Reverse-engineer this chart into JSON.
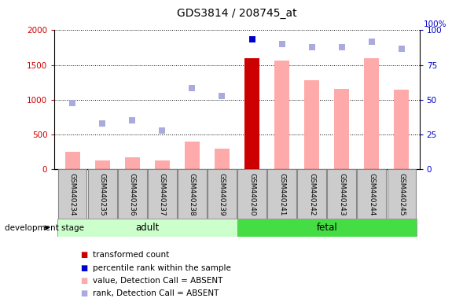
{
  "title": "GDS3814 / 208745_at",
  "samples": [
    "GSM440234",
    "GSM440235",
    "GSM440236",
    "GSM440237",
    "GSM440238",
    "GSM440239",
    "GSM440240",
    "GSM440241",
    "GSM440242",
    "GSM440243",
    "GSM440244",
    "GSM440245"
  ],
  "groups": [
    "adult",
    "adult",
    "adult",
    "adult",
    "adult",
    "adult",
    "fetal",
    "fetal",
    "fetal",
    "fetal",
    "fetal",
    "fetal"
  ],
  "bar_values": [
    250,
    130,
    170,
    120,
    400,
    300,
    1600,
    1560,
    1280,
    1150,
    1600,
    1140
  ],
  "bar_colors": [
    "#ffaaaa",
    "#ffaaaa",
    "#ffaaaa",
    "#ffaaaa",
    "#ffaaaa",
    "#ffaaaa",
    "#cc0000",
    "#ffaaaa",
    "#ffaaaa",
    "#ffaaaa",
    "#ffaaaa",
    "#ffaaaa"
  ],
  "rank_values": [
    950,
    660,
    700,
    560,
    1170,
    1050,
    1870,
    1800,
    1760,
    1750,
    1840,
    1730
  ],
  "rank_colors": [
    "#aaaadd",
    "#aaaadd",
    "#aaaadd",
    "#aaaadd",
    "#aaaadd",
    "#aaaadd",
    "#0000cc",
    "#aaaadd",
    "#aaaadd",
    "#aaaadd",
    "#aaaadd",
    "#aaaadd"
  ],
  "ylim_left": [
    0,
    2000
  ],
  "ylim_right": [
    0,
    100
  ],
  "yticks_left": [
    0,
    500,
    1000,
    1500,
    2000
  ],
  "yticks_right": [
    0,
    25,
    50,
    75,
    100
  ],
  "ylabel_left_color": "#cc0000",
  "ylabel_right_color": "#0000cc",
  "group_adult_label": "adult",
  "group_fetal_label": "fetal",
  "group_color_adult": "#ccffcc",
  "group_color_fetal": "#44dd44",
  "dev_stage_label": "development stage",
  "legend_items": [
    {
      "label": "transformed count",
      "color": "#cc0000"
    },
    {
      "label": "percentile rank within the sample",
      "color": "#0000cc"
    },
    {
      "label": "value, Detection Call = ABSENT",
      "color": "#ffaaaa"
    },
    {
      "label": "rank, Detection Call = ABSENT",
      "color": "#aaaadd"
    }
  ],
  "bar_width": 0.5,
  "rank_marker_size": 35,
  "dotted_grid_color": "#000000",
  "label_box_color": "#cccccc",
  "label_box_edge": "#888888"
}
